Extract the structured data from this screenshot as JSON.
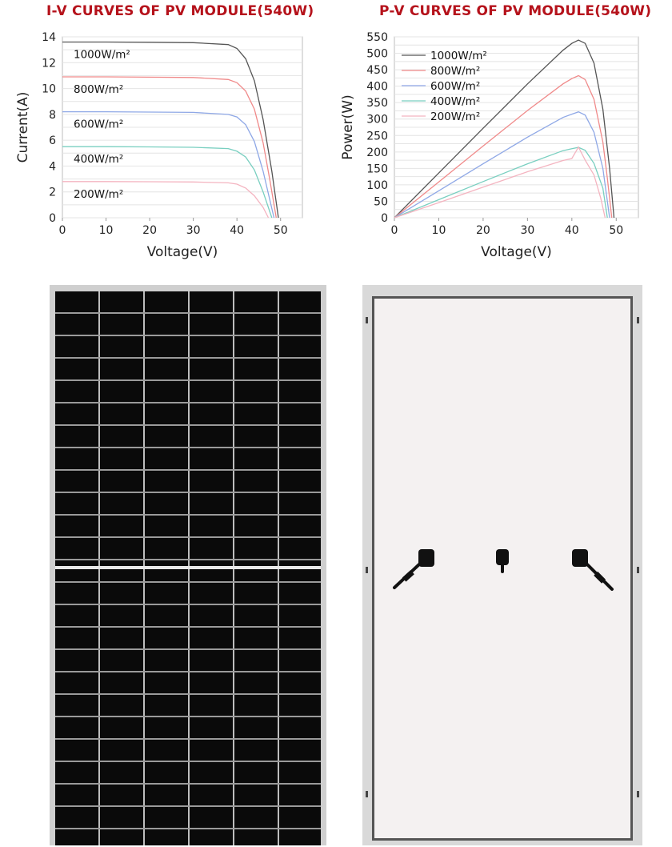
{
  "iv_chart": {
    "title": "I-V CURVES OF PV MODULE(540W)",
    "chart_data": {
      "type": "line",
      "title": "I-V CURVES OF PV MODULE(540W)",
      "xlabel": "Voltage(V)",
      "ylabel": "Current(A)",
      "xlim": [
        0,
        55
      ],
      "ylim": [
        0,
        14
      ],
      "x_ticks": [
        0,
        10,
        20,
        30,
        40,
        50
      ],
      "y_ticks": [
        0,
        2,
        4,
        6,
        8,
        10,
        12,
        14
      ],
      "grid": "horizontal",
      "series": [
        {
          "name": "1000W/m²",
          "color": "#555555",
          "x": [
            0,
            10,
            20,
            30,
            38,
            40,
            42,
            44,
            46,
            48,
            49.5
          ],
          "y": [
            13.6,
            13.6,
            13.58,
            13.55,
            13.4,
            13.1,
            12.3,
            10.6,
            7.6,
            3.6,
            0
          ]
        },
        {
          "name": "800W/m²",
          "color": "#f08a8a",
          "x": [
            0,
            10,
            20,
            30,
            38,
            40,
            42,
            44,
            46,
            47.5,
            49
          ],
          "y": [
            10.9,
            10.9,
            10.88,
            10.85,
            10.7,
            10.45,
            9.8,
            8.4,
            5.8,
            3.0,
            0
          ]
        },
        {
          "name": "600W/m²",
          "color": "#8fa8e6",
          "x": [
            0,
            10,
            20,
            30,
            38,
            40,
            42,
            44,
            46,
            48.5
          ],
          "y": [
            8.2,
            8.2,
            8.18,
            8.15,
            8.0,
            7.8,
            7.2,
            5.9,
            3.6,
            0
          ]
        },
        {
          "name": "400W/m²",
          "color": "#79cfc0",
          "x": [
            0,
            10,
            20,
            30,
            38,
            40,
            42,
            44,
            46,
            48
          ],
          "y": [
            5.5,
            5.5,
            5.48,
            5.45,
            5.35,
            5.15,
            4.7,
            3.7,
            2.0,
            0
          ]
        },
        {
          "name": "200W/m²",
          "color": "#f4b4c0",
          "x": [
            0,
            10,
            20,
            30,
            38,
            40,
            42,
            44,
            46,
            47.2
          ],
          "y": [
            2.8,
            2.8,
            2.79,
            2.77,
            2.7,
            2.6,
            2.3,
            1.7,
            0.8,
            0
          ]
        }
      ],
      "legend": "inline-left"
    }
  },
  "pv_chart": {
    "title": "P-V CURVES OF PV MODULE(540W)",
    "chart_data": {
      "type": "line",
      "title": "P-V CURVES OF PV MODULE(540W)",
      "xlabel": "Voltage(V)",
      "ylabel": "Power(W)",
      "xlim": [
        0,
        55
      ],
      "ylim": [
        0,
        550
      ],
      "x_ticks": [
        0,
        10,
        20,
        30,
        40,
        50
      ],
      "y_ticks": [
        0,
        50,
        100,
        150,
        200,
        250,
        300,
        350,
        400,
        450,
        500,
        550
      ],
      "grid": "horizontal",
      "series": [
        {
          "name": "1000W/m²",
          "color": "#555555",
          "x": [
            0,
            10,
            20,
            30,
            38,
            40,
            41.5,
            43,
            45,
            47,
            48.5,
            49.5
          ],
          "y": [
            0,
            136,
            272,
            407,
            509,
            530,
            540,
            530,
            470,
            330,
            150,
            0
          ]
        },
        {
          "name": "800W/m²",
          "color": "#f08a8a",
          "x": [
            0,
            10,
            20,
            30,
            38,
            40,
            41.5,
            43,
            45,
            47,
            48,
            49
          ],
          "y": [
            0,
            109,
            218,
            326,
            407,
            423,
            432,
            420,
            360,
            230,
            120,
            0
          ]
        },
        {
          "name": "600W/m²",
          "color": "#8fa8e6",
          "x": [
            0,
            10,
            20,
            30,
            38,
            40,
            41.5,
            43,
            45,
            47,
            48.5
          ],
          "y": [
            0,
            82,
            164,
            245,
            305,
            315,
            322,
            312,
            260,
            150,
            0
          ]
        },
        {
          "name": "400W/m²",
          "color": "#79cfc0",
          "x": [
            0,
            10,
            20,
            30,
            38,
            40,
            41.5,
            43,
            45,
            47,
            48
          ],
          "y": [
            0,
            55,
            110,
            164,
            204,
            210,
            214,
            205,
            165,
            90,
            0
          ]
        },
        {
          "name": "200W/m²",
          "color": "#f4b4c0",
          "x": [
            0,
            10,
            20,
            30,
            38,
            40,
            41.5,
            43,
            45,
            46.5,
            47.5
          ],
          "y": [
            0,
            46,
            93,
            140,
            174,
            180,
            215,
            175,
            130,
            60,
            0
          ]
        }
      ],
      "legend": "top-left"
    }
  },
  "panels": {
    "front": "solar-panel-front",
    "back": "solar-panel-back"
  }
}
